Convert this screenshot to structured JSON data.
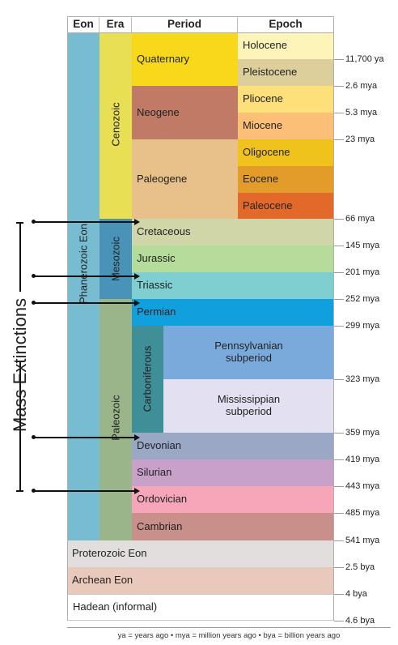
{
  "headers": {
    "eon": "Eon",
    "era": "Era",
    "period": "Period",
    "epoch": "Epoch"
  },
  "eons": {
    "phanerozoic": "Phanerozoic Eon",
    "proterozoic": "Proterozoic Eon",
    "archean": "Archean Eon",
    "hadean": "Hadean (informal)"
  },
  "eras": {
    "cenozoic": "Cenozoic",
    "mesozoic": "Mesozoic",
    "paleozoic": "Paleozoic"
  },
  "periods": {
    "quaternary": "Quaternary",
    "neogene": "Neogene",
    "paleogene": "Paleogene",
    "cretaceous": "Cretaceous",
    "jurassic": "Jurassic",
    "triassic": "Triassic",
    "permian": "Permian",
    "carboniferous": "Carboniferous",
    "devonian": "Devonian",
    "silurian": "Silurian",
    "ordovician": "Ordovician",
    "cambrian": "Cambrian"
  },
  "subperiods": {
    "pennsylvanian": "Pennsylvanian subperiod",
    "mississippian": "Mississippian subperiod"
  },
  "epochs": {
    "holocene": "Holocene",
    "pleistocene": "Pleistocene",
    "pliocene": "Pliocene",
    "miocene": "Miocene",
    "oligocene": "Oligocene",
    "eocene": "Eocene",
    "paleocene": "Paleocene"
  },
  "boundaries": [
    "11,700 ya",
    "2.6 mya",
    "5.3 mya",
    "23 mya",
    "66 mya",
    "145 mya",
    "201 mya",
    "252 mya",
    "299 mya",
    "323 mya",
    "359 mya",
    "419 mya",
    "443 mya",
    "485 mya",
    "541 mya",
    "2.5 bya",
    "4 bya",
    "4.6 bya"
  ],
  "mass_extinctions_label": "Mass Extinctions",
  "footer": "ya = years ago • mya = million years ago • bya = billion years ago",
  "colors": {
    "eon_phanerozoic": "#77bcd0",
    "era_cenozoic": "#e8df55",
    "era_mesozoic": "#4a93b8",
    "era_paleozoic": "#9bb58a",
    "carboniferous": "#3f8f99",
    "quaternary": "#f8d81b",
    "neogene": "#c07a66",
    "paleogene": "#e8c08a",
    "holocene": "#fcf4b8",
    "pleistocene": "#dccf9c",
    "pliocene": "#fde07a",
    "miocene": "#fbbf78",
    "oligocene": "#efc21c",
    "eocene": "#e39c2a",
    "paleocene": "#e3692a",
    "cretaceous": "#d0d6a8",
    "jurassic": "#b5dc9a",
    "triassic": "#7fcfd1",
    "permian": "#10a0de",
    "pennsylvanian": "#7aaadc",
    "mississippian": "#e2e0f1",
    "devonian": "#9aa8c6",
    "silurian": "#c8a1cb",
    "ordovician": "#f6a6b8",
    "cambrian": "#c9908b",
    "proterozoic": "#e1dedd",
    "archean": "#e8c9bb",
    "hadean": "#ffffff"
  }
}
